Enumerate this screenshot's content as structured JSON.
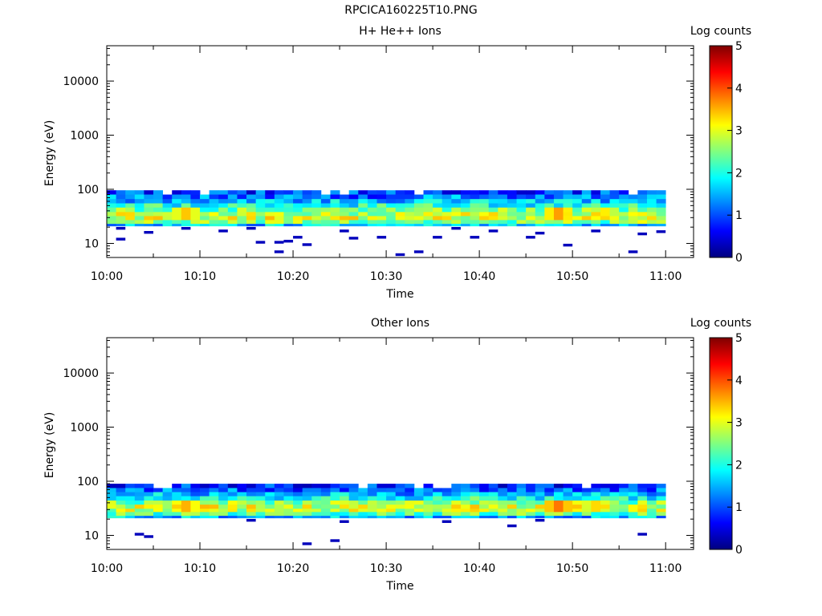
{
  "figure_title": "RPCICA160225T10.PNG",
  "colormap": [
    "#00007f",
    "#0000ff",
    "#0080ff",
    "#00ffff",
    "#80ff80",
    "#ffff00",
    "#ff8000",
    "#ff0000",
    "#7f0000"
  ],
  "chart_data": [
    {
      "type": "heatmap",
      "title": "H+ He++ Ions",
      "xlabel": "Time",
      "ylabel": "Energy (eV)",
      "xticks": [
        "10:00",
        "10:10",
        "10:20",
        "10:30",
        "10:40",
        "10:50",
        "11:00"
      ],
      "xlim": [
        "10:00",
        "11:03"
      ],
      "yscale": "log",
      "ylim": [
        5.5,
        45000
      ],
      "yticks": [
        "10",
        "100",
        "1000",
        "10000"
      ],
      "colorbar": {
        "label": "Log counts",
        "range": [
          0,
          5
        ],
        "ticks": [
          "0",
          "1",
          "2",
          "3",
          "4",
          "5"
        ]
      },
      "grid": false,
      "time_bins": 60,
      "energy_bins": [
        {
          "min": 80,
          "max": 96
        },
        {
          "min": 66,
          "max": 80
        },
        {
          "min": 55,
          "max": 66
        },
        {
          "min": 46,
          "max": 55
        },
        {
          "min": 38,
          "max": 46
        },
        {
          "min": 32,
          "max": 38
        },
        {
          "min": 27,
          "max": 32
        },
        {
          "min": 23,
          "max": 27
        },
        {
          "min": 21,
          "max": 23
        }
      ],
      "band_profile": [
        0.9,
        1.2,
        1.6,
        2.0,
        2.4,
        2.8,
        2.9,
        2.5,
        1.6
      ],
      "peaks": [
        {
          "time": "10:08",
          "value": 3.4
        },
        {
          "time": "10:48",
          "value": 3.6
        },
        {
          "time": "10:53",
          "value": 3.2
        }
      ],
      "sparse_points": [
        {
          "time": "10:01",
          "energy": 19,
          "value": 0.3
        },
        {
          "time": "10:01",
          "energy": 12,
          "value": 0.3
        },
        {
          "time": "10:04",
          "energy": 16,
          "value": 0.3
        },
        {
          "time": "10:08",
          "energy": 19,
          "value": 0.3
        },
        {
          "time": "10:12",
          "energy": 17,
          "value": 0.3
        },
        {
          "time": "10:15",
          "energy": 19,
          "value": 0.3
        },
        {
          "time": "10:16",
          "energy": 10.5,
          "value": 0.3
        },
        {
          "time": "10:18",
          "energy": 10.5,
          "value": 0.3
        },
        {
          "time": "10:18",
          "energy": 7,
          "value": 0.3
        },
        {
          "time": "10:19",
          "energy": 11,
          "value": 0.3
        },
        {
          "time": "10:20",
          "energy": 13,
          "value": 0.3
        },
        {
          "time": "10:21",
          "energy": 9.5,
          "value": 0.3
        },
        {
          "time": "10:25",
          "energy": 17,
          "value": 0.3
        },
        {
          "time": "10:26",
          "energy": 12.5,
          "value": 0.3
        },
        {
          "time": "10:29",
          "energy": 13,
          "value": 0.3
        },
        {
          "time": "10:31",
          "energy": 6.2,
          "value": 0.3
        },
        {
          "time": "10:33",
          "energy": 7,
          "value": 0.3
        },
        {
          "time": "10:35",
          "energy": 13,
          "value": 0.3
        },
        {
          "time": "10:37",
          "energy": 19,
          "value": 0.3
        },
        {
          "time": "10:39",
          "energy": 13,
          "value": 0.3
        },
        {
          "time": "10:41",
          "energy": 17,
          "value": 0.3
        },
        {
          "time": "10:45",
          "energy": 13,
          "value": 0.3
        },
        {
          "time": "10:46",
          "energy": 15.5,
          "value": 0.3
        },
        {
          "time": "10:49",
          "energy": 9.3,
          "value": 0.3
        },
        {
          "time": "10:52",
          "energy": 17,
          "value": 0.3
        },
        {
          "time": "10:56",
          "energy": 7,
          "value": 0.3
        },
        {
          "time": "10:57",
          "energy": 15,
          "value": 0.3
        },
        {
          "time": "10:59",
          "energy": 16.5,
          "value": 0.3
        }
      ]
    },
    {
      "type": "heatmap",
      "title": "Other Ions",
      "xlabel": "Time",
      "ylabel": "Energy (eV)",
      "xticks": [
        "10:00",
        "10:10",
        "10:20",
        "10:30",
        "10:40",
        "10:50",
        "11:00"
      ],
      "xlim": [
        "10:00",
        "11:03"
      ],
      "yscale": "log",
      "ylim": [
        5.5,
        45000
      ],
      "yticks": [
        "10",
        "100",
        "1000",
        "10000"
      ],
      "colorbar": {
        "label": "Log counts",
        "range": [
          0,
          5
        ],
        "ticks": [
          "0",
          "1",
          "2",
          "3",
          "4",
          "5"
        ]
      },
      "grid": false,
      "time_bins": 60,
      "energy_bins": [
        {
          "min": 75,
          "max": 90
        },
        {
          "min": 63,
          "max": 75
        },
        {
          "min": 53,
          "max": 63
        },
        {
          "min": 44,
          "max": 53
        },
        {
          "min": 37,
          "max": 44
        },
        {
          "min": 31,
          "max": 37
        },
        {
          "min": 27,
          "max": 31
        },
        {
          "min": 23,
          "max": 27
        },
        {
          "min": 21,
          "max": 23
        }
      ],
      "band_profile": [
        0.8,
        1.1,
        1.5,
        2.0,
        2.5,
        2.9,
        2.8,
        2.3,
        1.5
      ],
      "peaks": [
        {
          "time": "10:08",
          "value": 3.5
        },
        {
          "time": "10:48",
          "value": 3.8
        },
        {
          "time": "10:52",
          "value": 3.3
        }
      ],
      "sparse_points": [
        {
          "time": "10:03",
          "energy": 10.5,
          "value": 0.3
        },
        {
          "time": "10:04",
          "energy": 9.5,
          "value": 0.3
        },
        {
          "time": "10:15",
          "energy": 19,
          "value": 0.3
        },
        {
          "time": "10:21",
          "energy": 7,
          "value": 0.3
        },
        {
          "time": "10:24",
          "energy": 8,
          "value": 0.3
        },
        {
          "time": "10:25",
          "energy": 18,
          "value": 0.3
        },
        {
          "time": "10:36",
          "energy": 18,
          "value": 0.3
        },
        {
          "time": "10:43",
          "energy": 15,
          "value": 0.3
        },
        {
          "time": "10:46",
          "energy": 19,
          "value": 0.3
        },
        {
          "time": "10:57",
          "energy": 10.5,
          "value": 0.3
        }
      ]
    }
  ]
}
